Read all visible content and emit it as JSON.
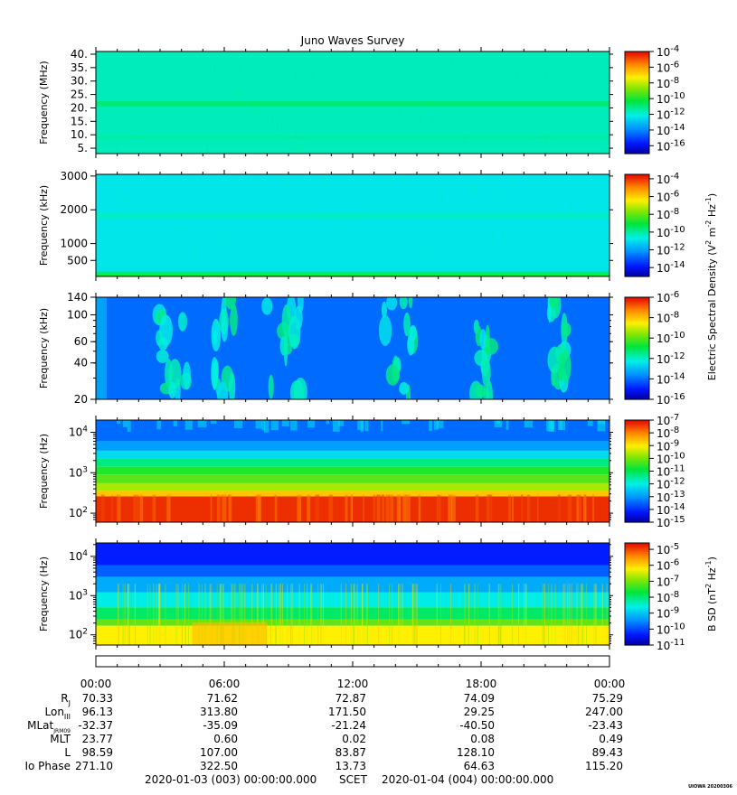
{
  "chart_data": {
    "type": "heatmap",
    "title": "Juno Waves Survey",
    "panels": [
      {
        "ylabel": "Frequency (MHz)",
        "yscale": "linear",
        "ylim": [
          3,
          41
        ],
        "yticks": [
          {
            "v": 40,
            "label": "40."
          },
          {
            "v": 35,
            "label": "35."
          },
          {
            "v": 30,
            "label": "30."
          },
          {
            "v": 25,
            "label": "25."
          },
          {
            "v": 20,
            "label": "20."
          },
          {
            "v": 15,
            "label": "15."
          },
          {
            "v": 10,
            "label": "10."
          },
          {
            "v": 5,
            "label": "5."
          }
        ],
        "colorbar": {
          "min": -17,
          "max": -4,
          "ticks": [
            -4,
            -6,
            -8,
            -10,
            -12,
            -14,
            -16
          ],
          "base": "10"
        },
        "bands": [
          {
            "y0": 3,
            "y1": 41,
            "log10": -11.6
          },
          {
            "y0": 20.5,
            "y1": 22.5,
            "log10": -10.9
          },
          {
            "y0": 8.5,
            "y1": 9.5,
            "log10": -11.3
          }
        ]
      },
      {
        "ylabel": "Frequency (kHz)",
        "yscale": "linear",
        "ylim": [
          25,
          3050
        ],
        "yticks": [
          {
            "v": 3000,
            "label": "3000"
          },
          {
            "v": 2000,
            "label": "2000"
          },
          {
            "v": 1000,
            "label": "1000"
          },
          {
            "v": 500,
            "label": "500"
          }
        ],
        "colorbar": {
          "min": -15,
          "max": -3.5,
          "ticks": [
            -4,
            -6,
            -8,
            -10,
            -12,
            -14
          ],
          "base": "10"
        },
        "bands": [
          {
            "y0": 25,
            "y1": 3050,
            "log10": -10.8
          },
          {
            "y0": 1750,
            "y1": 1900,
            "log10": -10.3
          },
          {
            "y0": 25,
            "y1": 170,
            "log10": -9.6
          },
          {
            "y0": 25,
            "y1": 80,
            "log10": -8.9
          }
        ]
      },
      {
        "ylabel": "Frequency (kHz)",
        "yscale": "log",
        "ylim": [
          20,
          140
        ],
        "yticks": [
          {
            "v": 140,
            "label": "140"
          },
          {
            "v": 100,
            "label": "100"
          },
          {
            "v": 60,
            "label": "60"
          },
          {
            "v": 40,
            "label": "40"
          },
          {
            "v": 20,
            "label": "20"
          }
        ],
        "colorbar": {
          "min": -16,
          "max": -6,
          "ticks": [
            -6,
            -8,
            -10,
            -12,
            -14,
            -16
          ],
          "base": "10"
        },
        "bands": [
          {
            "y0": 20,
            "y1": 140,
            "log10": -14.0
          }
        ]
      },
      {
        "ylabel": "Frequency (Hz)",
        "yscale": "log",
        "ylim": [
          60,
          20000
        ],
        "yticks": [
          {
            "v": 10000,
            "label": "10",
            "exp": "4"
          },
          {
            "v": 1000,
            "label": "10",
            "exp": "3"
          },
          {
            "v": 100,
            "label": "10",
            "exp": "2"
          }
        ],
        "colorbar": {
          "min": -15,
          "max": -7,
          "ticks": [
            -7,
            -8,
            -9,
            -10,
            -11,
            -12,
            -13,
            -14,
            -15
          ],
          "base": "10"
        },
        "bands": [
          {
            "y0": 6000,
            "y1": 20000,
            "log10": -13.4
          },
          {
            "y0": 3500,
            "y1": 6000,
            "log10": -12.9
          },
          {
            "y0": 2300,
            "y1": 3500,
            "log10": -12.2
          },
          {
            "y0": 1400,
            "y1": 2300,
            "log10": -11.3
          },
          {
            "y0": 900,
            "y1": 1400,
            "log10": -10.6
          },
          {
            "y0": 550,
            "y1": 900,
            "log10": -10.2
          },
          {
            "y0": 350,
            "y1": 550,
            "log10": -9.6
          },
          {
            "y0": 260,
            "y1": 350,
            "log10": -8.6
          },
          {
            "y0": 60,
            "y1": 260,
            "log10": -7.3
          }
        ]
      },
      {
        "ylabel": "Frequency (Hz)",
        "yscale": "log",
        "ylim": [
          55,
          22000
        ],
        "yticks": [
          {
            "v": 10000,
            "label": "10",
            "exp": "4"
          },
          {
            "v": 1000,
            "label": "10",
            "exp": "3"
          },
          {
            "v": 100,
            "label": "10",
            "exp": "2"
          }
        ],
        "colorbar": {
          "min": -11,
          "max": -4.6,
          "ticks": [
            -5,
            -6,
            -7,
            -8,
            -9,
            -10,
            -11
          ],
          "base": "10"
        },
        "bands": [
          {
            "y0": 6000,
            "y1": 22000,
            "log10": -10.3
          },
          {
            "y0": 3000,
            "y1": 6000,
            "log10": -9.8
          },
          {
            "y0": 1200,
            "y1": 3000,
            "log10": -9.2
          },
          {
            "y0": 500,
            "y1": 1200,
            "log10": -8.6
          },
          {
            "y0": 250,
            "y1": 500,
            "log10": -7.9
          },
          {
            "y0": 170,
            "y1": 250,
            "log10": -7.1
          },
          {
            "y0": 55,
            "y1": 170,
            "log10": -6.2
          }
        ]
      }
    ],
    "colorbar_labels": [
      {
        "text": "Electric Spectral Density (V",
        "sup1": "2",
        "mid": " m",
        "sup2": "-2",
        "mid2": " Hz",
        "sup3": "-1",
        "end": ")",
        "panel_from": 0,
        "panel_to": 3
      },
      {
        "text": "B SD (nT",
        "sup1": "2",
        "mid": " Hz",
        "sup2": "-1",
        "end": ")",
        "panel_from": 4,
        "panel_to": 4
      }
    ],
    "x": {
      "range": [
        0,
        24
      ],
      "major_ticks": [
        0,
        6,
        12,
        18,
        24
      ],
      "minor_step": 1,
      "time_labels": [
        "00:00",
        "06:00",
        "12:00",
        "18:00",
        "00:00"
      ]
    },
    "ephemeris": [
      {
        "label": "R",
        "sub": "J",
        "values": [
          "70.33",
          "71.62",
          "72.87",
          "74.09",
          "75.29"
        ]
      },
      {
        "label": "Lon",
        "sub": "III",
        "values": [
          "96.13",
          "313.80",
          "171.50",
          "29.25",
          "247.00"
        ]
      },
      {
        "label": "MLat",
        "sub": "JRM09",
        "values": [
          "-32.37",
          "-35.09",
          "-21.24",
          "-40.50",
          "-23.43"
        ]
      },
      {
        "label": "MLT",
        "sub": "",
        "values": [
          "23.77",
          "0.60",
          "0.02",
          "0.08",
          "0.49"
        ]
      },
      {
        "label": "L",
        "sub": "",
        "values": [
          "98.59",
          "107.00",
          "83.87",
          "128.10",
          "89.43"
        ]
      },
      {
        "label": "Io Phase",
        "sub": "",
        "values": [
          "271.10",
          "322.50",
          "13.73",
          "64.63",
          "115.20"
        ]
      }
    ],
    "footer": {
      "start": "2020-01-03 (003) 00:00:00.000",
      "axis": "SCET",
      "end": "2020-01-04 (004) 00:00:00.000"
    },
    "stamp": "UIOWA 20200306"
  }
}
